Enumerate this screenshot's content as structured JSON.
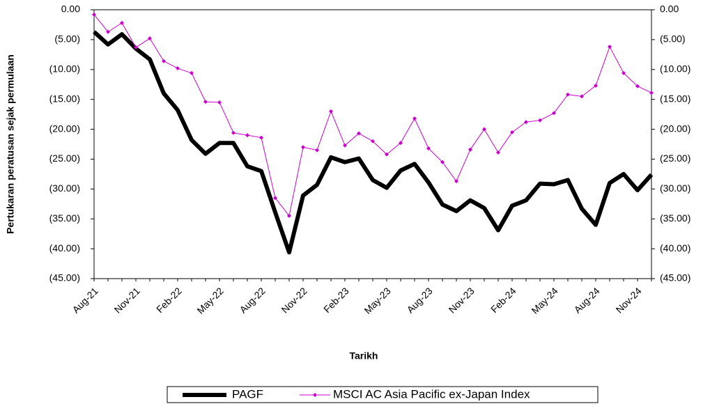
{
  "chart_data": {
    "type": "line",
    "y_label": "Pertukaran peratusan sejak permulaan",
    "x_label": "Tarikh",
    "categories": [
      "Aug-21",
      null,
      null,
      "Nov-21",
      null,
      null,
      "Feb-22",
      null,
      null,
      "May-22",
      null,
      null,
      "Aug-22",
      null,
      null,
      "Nov-22",
      null,
      null,
      "Feb-23",
      null,
      null,
      "May-23",
      null,
      null,
      "Aug-23",
      null,
      null,
      "Nov-23",
      null,
      null,
      "Feb-24",
      null,
      null,
      "May-24",
      null,
      null,
      "Aug-24",
      null,
      null,
      "Nov-24",
      null
    ],
    "series": [
      {
        "name": "PAGF",
        "color": "#000000",
        "values": [
          -3.7,
          -5.8,
          -4.1,
          -6.5,
          -8.3,
          -14.0,
          -16.8,
          -21.8,
          -24.1,
          -22.3,
          -22.3,
          -26.2,
          -27.0,
          -33.9,
          -40.6,
          -31.1,
          -29.3,
          -24.7,
          -25.5,
          -24.9,
          -28.5,
          -29.8,
          -26.9,
          -25.8,
          -28.9,
          -32.6,
          -33.7,
          -31.9,
          -33.2,
          -36.9,
          -32.8,
          -31.9,
          -29.1,
          -29.2,
          -28.5,
          -33.3,
          -36.0,
          -29.0,
          -27.5,
          -30.2,
          -27.6
        ]
      },
      {
        "name": "MSCI AC Asia Pacific ex-Japan Index",
        "color": "#cc00cc",
        "axis": "y2",
        "values": [
          -0.8,
          -3.7,
          -2.2,
          -6.3,
          -4.8,
          -8.6,
          -9.8,
          -10.6,
          -15.4,
          -15.5,
          -20.6,
          -21.0,
          -21.4,
          -31.5,
          -34.5,
          -23.0,
          -23.5,
          -17.0,
          -22.7,
          -20.7,
          -22.0,
          -24.2,
          -22.3,
          -18.2,
          -23.2,
          -25.5,
          -28.7,
          -23.4,
          -20.0,
          -23.9,
          -20.5,
          -18.8,
          -18.5,
          -17.3,
          -14.2,
          -14.5,
          -12.7,
          -6.2,
          -10.6,
          -12.8,
          -13.9
        ]
      }
    ],
    "ylim": [
      -45,
      0
    ],
    "yticks": [
      {
        "value": 0,
        "label": "0.00"
      },
      {
        "value": -5,
        "label": "(5.00)"
      },
      {
        "value": -10,
        "label": "(10.00)"
      },
      {
        "value": -15,
        "label": "(15.00)"
      },
      {
        "value": -20,
        "label": "(20.00)"
      },
      {
        "value": -25,
        "label": "(25.00)"
      },
      {
        "value": -30,
        "label": "(30.00)"
      },
      {
        "value": -35,
        "label": "(35.00)"
      },
      {
        "value": -40,
        "label": "(40.00)"
      },
      {
        "value": -45,
        "label": "(45.00)"
      }
    ],
    "y2lim": [
      -45,
      0
    ],
    "y2ticks": [
      {
        "value": 0,
        "label": "0.00"
      },
      {
        "value": -5,
        "label": "(5.00)"
      },
      {
        "value": -10,
        "label": "(10.00)"
      },
      {
        "value": -15,
        "label": "(15.00)"
      },
      {
        "value": -20,
        "label": "(20.00)"
      },
      {
        "value": -25,
        "label": "(25.00)"
      },
      {
        "value": -30,
        "label": "(30.00)"
      },
      {
        "value": -35,
        "label": "(35.00)"
      },
      {
        "value": -40,
        "label": "(40.00)"
      },
      {
        "value": -45,
        "label": "(45.00)"
      }
    ],
    "negative_tick_color": "#ff0000",
    "legend": "bottom"
  }
}
